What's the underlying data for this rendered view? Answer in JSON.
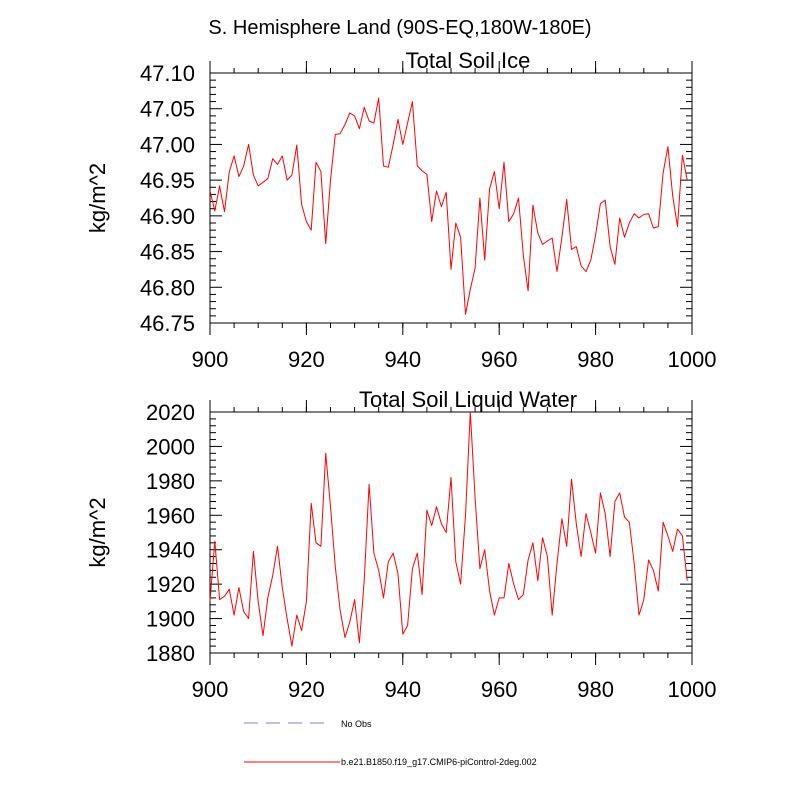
{
  "figure_title": "S. Hemisphere Land (90S-EQ,180W-180E)",
  "legend": {
    "items": [
      {
        "label": "No Obs",
        "color": "#9999dd",
        "style": "dashed"
      },
      {
        "label": "b.e21.B1850.f19_g17.CMIP6-piControl-2deg.002",
        "color": "#ff0000",
        "style": "solid"
      }
    ]
  },
  "chart_data": [
    {
      "type": "line",
      "title": "Total Soil Ice",
      "xlabel": "",
      "ylabel": "kg/m^2",
      "xlim": [
        900,
        1000
      ],
      "ylim": [
        46.75,
        47.1
      ],
      "xticks": [
        "900",
        "920",
        "940",
        "960",
        "980",
        "1000"
      ],
      "yticks": [
        "46.75",
        "46.80",
        "46.85",
        "46.90",
        "46.95",
        "47.00",
        "47.05",
        "47.10"
      ],
      "series": [
        {
          "name": "b.e21.B1850.f19_g17.CMIP6-piControl-2deg.002",
          "color": "#ff0000",
          "x": [
            900,
            901,
            902,
            903,
            904,
            905,
            906,
            907,
            908,
            909,
            910,
            911,
            912,
            913,
            914,
            915,
            916,
            917,
            918,
            919,
            920,
            921,
            922,
            923,
            924,
            925,
            926,
            927,
            928,
            929,
            930,
            931,
            932,
            933,
            934,
            935,
            936,
            937,
            938,
            939,
            940,
            941,
            942,
            943,
            944,
            945,
            946,
            947,
            948,
            949,
            950,
            951,
            952,
            953,
            954,
            955,
            956,
            957,
            958,
            959,
            960,
            961,
            962,
            963,
            964,
            965,
            966,
            967,
            968,
            969,
            970,
            971,
            972,
            973,
            974,
            975,
            976,
            977,
            978,
            979,
            980,
            981,
            982,
            983,
            984,
            985,
            986,
            987,
            988,
            989,
            990,
            991,
            992,
            993,
            994,
            995,
            996,
            997,
            998,
            999
          ],
          "values": [
            46.935,
            46.907,
            46.942,
            46.906,
            46.962,
            46.984,
            46.955,
            46.97,
            47.0,
            46.957,
            46.942,
            46.947,
            46.952,
            46.98,
            46.972,
            46.984,
            46.95,
            46.957,
            46.999,
            46.916,
            46.892,
            46.88,
            46.975,
            46.962,
            46.861,
            46.95,
            47.014,
            47.015,
            47.028,
            47.044,
            47.04,
            47.022,
            47.052,
            47.033,
            47.03,
            47.065,
            46.97,
            46.968,
            47.0,
            47.035,
            47.0,
            47.03,
            47.06,
            46.97,
            46.963,
            46.958,
            46.892,
            46.935,
            46.913,
            46.933,
            46.825,
            46.89,
            46.87,
            46.762,
            46.797,
            46.827,
            46.925,
            46.838,
            46.938,
            46.962,
            46.91,
            46.975,
            46.892,
            46.903,
            46.925,
            46.845,
            46.795,
            46.915,
            46.876,
            46.86,
            46.865,
            46.869,
            46.822,
            46.87,
            46.923,
            46.853,
            46.857,
            46.83,
            46.822,
            46.838,
            46.873,
            46.917,
            46.922,
            46.857,
            46.832,
            46.897,
            46.87,
            46.89,
            46.903,
            46.897,
            46.902,
            46.903,
            46.883,
            46.885,
            46.96,
            46.997,
            46.928,
            46.885,
            46.985,
            46.95
          ]
        }
      ]
    },
    {
      "type": "line",
      "title": "Total Soil Liquid Water",
      "xlabel": "",
      "ylabel": "kg/m^2",
      "xlim": [
        900,
        1000
      ],
      "ylim": [
        1880,
        2020
      ],
      "xticks": [
        "900",
        "920",
        "940",
        "960",
        "980",
        "1000"
      ],
      "yticks": [
        "1880",
        "1900",
        "1920",
        "1940",
        "1960",
        "1980",
        "2000",
        "2020"
      ],
      "series": [
        {
          "name": "b.e21.B1850.f19_g17.CMIP6-piControl-2deg.002",
          "color": "#ff0000",
          "x": [
            900,
            901,
            902,
            903,
            904,
            905,
            906,
            907,
            908,
            909,
            910,
            911,
            912,
            913,
            914,
            915,
            916,
            917,
            918,
            919,
            920,
            921,
            922,
            923,
            924,
            925,
            926,
            927,
            928,
            929,
            930,
            931,
            932,
            933,
            934,
            935,
            936,
            937,
            938,
            939,
            940,
            941,
            942,
            943,
            944,
            945,
            946,
            947,
            948,
            949,
            950,
            951,
            952,
            953,
            954,
            955,
            956,
            957,
            958,
            959,
            960,
            961,
            962,
            963,
            964,
            965,
            966,
            967,
            968,
            969,
            970,
            971,
            972,
            973,
            974,
            975,
            976,
            977,
            978,
            979,
            980,
            981,
            982,
            983,
            984,
            985,
            986,
            987,
            988,
            989,
            990,
            991,
            992,
            993,
            994,
            995,
            996,
            997,
            998,
            999
          ],
          "values": [
            1910,
            1945,
            1911,
            1913,
            1917,
            1902,
            1918,
            1904,
            1900,
            1939,
            1910,
            1890,
            1912,
            1925,
            1942,
            1918,
            1900,
            1884,
            1902,
            1893,
            1910,
            1967,
            1944,
            1942,
            1996,
            1965,
            1930,
            1905,
            1889,
            1898,
            1911,
            1886,
            1922,
            1978,
            1938,
            1928,
            1912,
            1933,
            1938,
            1926,
            1891,
            1896,
            1929,
            1938,
            1914,
            1963,
            1954,
            1965,
            1955,
            1950,
            1982,
            1933,
            1920,
            1960,
            2020,
            1970,
            1929,
            1940,
            1916,
            1902,
            1912,
            1912,
            1932,
            1920,
            1911,
            1914,
            1934,
            1944,
            1922,
            1947,
            1936,
            1902,
            1932,
            1958,
            1942,
            1981,
            1955,
            1936,
            1961,
            1950,
            1938,
            1973,
            1961,
            1936,
            1968,
            1973,
            1959,
            1956,
            1932,
            1902,
            1911,
            1934,
            1928,
            1916,
            1956,
            1948,
            1939,
            1952,
            1948,
            1922
          ]
        }
      ]
    }
  ]
}
